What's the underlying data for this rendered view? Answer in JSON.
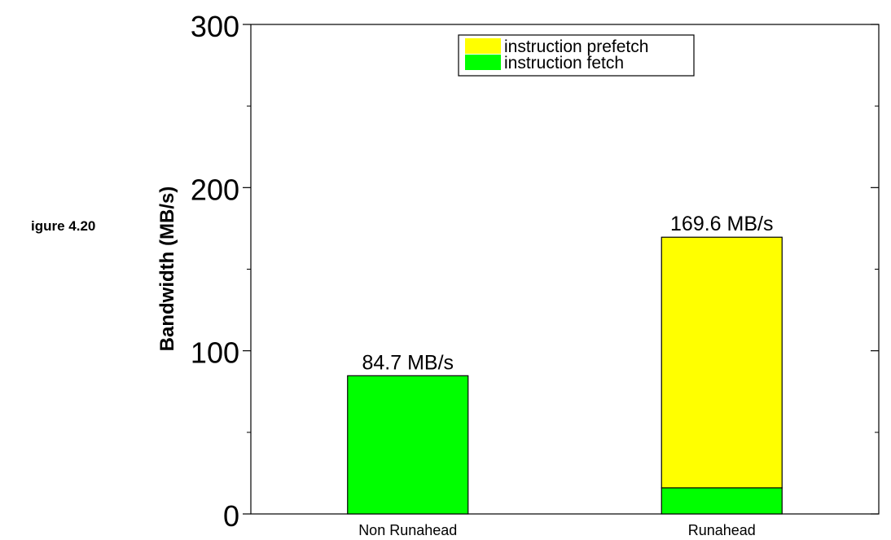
{
  "figure_label": "igure 4.20",
  "chart_data": {
    "type": "bar",
    "stacked": true,
    "categories": [
      "Non Runahead",
      "Runahead"
    ],
    "series": [
      {
        "name": "instruction fetch",
        "values": [
          84.7,
          16
        ],
        "color": "#00ff00"
      },
      {
        "name": "instruction prefetch",
        "values": [
          0,
          153.6
        ],
        "color": "#ffff00"
      }
    ],
    "totals": [
      84.7,
      169.6
    ],
    "data_labels": [
      "84.7 MB/s",
      "169.6 MB/s"
    ],
    "ylabel": "Bandwidth (MB/s)",
    "xlabel": "",
    "ylim": [
      0,
      300
    ],
    "yticks": [
      0,
      100,
      200,
      300
    ],
    "y_minor_step": 50,
    "legend": {
      "position": "top-center",
      "order": [
        "instruction prefetch",
        "instruction fetch"
      ]
    },
    "grid": false
  }
}
